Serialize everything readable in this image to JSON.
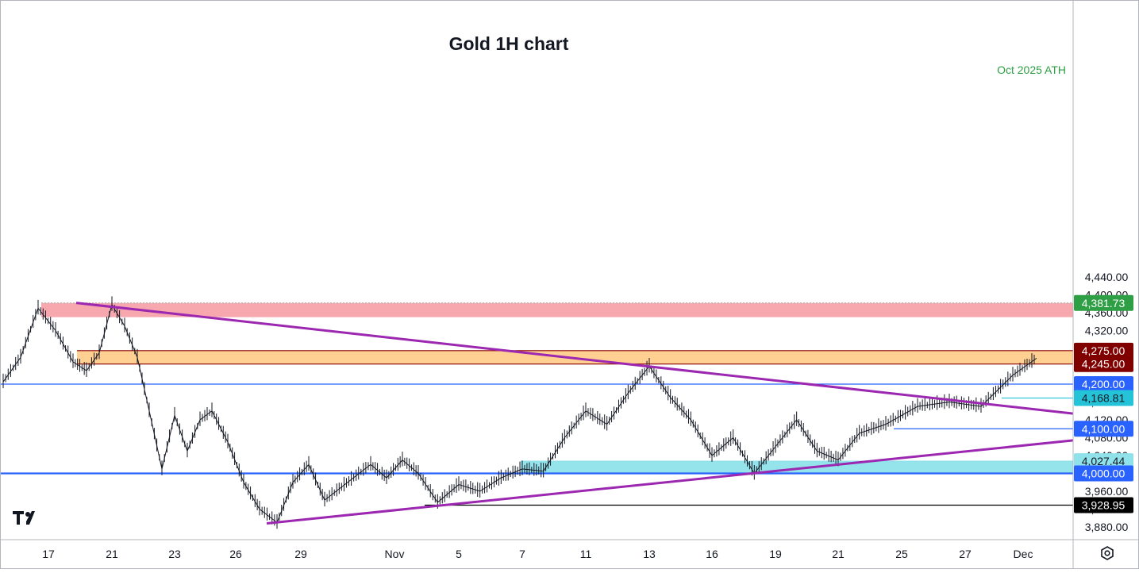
{
  "chart_data": {
    "type": "line",
    "title": "Gold 1H chart",
    "xlabel": "",
    "ylabel": "",
    "ylim": [
      3860,
      4460
    ],
    "x_ticks": [
      "17",
      "21",
      "23",
      "26",
      "29",
      "Nov",
      "5",
      "7",
      "11",
      "13",
      "16",
      "19",
      "21",
      "25",
      "27",
      "Dec"
    ],
    "y_ticks": [
      3880,
      3920,
      3960,
      4000,
      4040,
      4080,
      4120,
      4160,
      4200,
      4240,
      4280,
      4320,
      4360,
      4400,
      4440
    ],
    "y_tick_labels": [
      "3,880.00",
      "3,920.00",
      "3,960.00",
      "4,000.00",
      "4,040.00",
      "4,080.00",
      "4,120.00",
      "4,160.00",
      "4,200.00",
      "4,240.00",
      "4,280.00",
      "4,320.00",
      "4,360.00",
      "4,400.00",
      "4,440.00"
    ],
    "price_path": [
      [
        "17",
        4205
      ],
      [
        "17",
        4260
      ],
      [
        "17",
        4370
      ],
      [
        "17",
        4320
      ],
      [
        "17",
        4250
      ],
      [
        "21",
        4230
      ],
      [
        "21",
        4270
      ],
      [
        "21",
        4378
      ],
      [
        "21",
        4330
      ],
      [
        "21",
        4260
      ],
      [
        "23",
        4140
      ],
      [
        "23",
        4010
      ],
      [
        "23",
        4130
      ],
      [
        "23",
        4050
      ],
      [
        "23",
        4120
      ],
      [
        "26",
        4140
      ],
      [
        "26",
        4070
      ],
      [
        "26",
        3980
      ],
      [
        "26",
        3920
      ],
      [
        "29",
        3890
      ],
      [
        "29",
        3980
      ],
      [
        "29",
        4020
      ],
      [
        "29",
        3940
      ],
      [
        "Nov",
        4020
      ],
      [
        "Nov",
        3990
      ],
      [
        "Nov",
        4030
      ],
      [
        "Nov",
        4000
      ],
      [
        "5",
        3935
      ],
      [
        "5",
        3975
      ],
      [
        "5",
        3960
      ],
      [
        "7",
        3990
      ],
      [
        "7",
        4010
      ],
      [
        "7",
        4005
      ],
      [
        "11",
        4080
      ],
      [
        "11",
        4140
      ],
      [
        "11",
        4110
      ],
      [
        "13",
        4180
      ],
      [
        "13",
        4240
      ],
      [
        "13",
        4170
      ],
      [
        "16",
        4120
      ],
      [
        "16",
        4040
      ],
      [
        "16",
        4080
      ],
      [
        "19",
        4000
      ],
      [
        "19",
        4060
      ],
      [
        "19",
        4120
      ],
      [
        "21",
        4050
      ],
      [
        "21",
        4030
      ],
      [
        "21",
        4090
      ],
      [
        "25",
        4110
      ],
      [
        "25",
        4150
      ],
      [
        "27",
        4160
      ],
      [
        "27",
        4150
      ],
      [
        "Dec",
        4220
      ],
      [
        "Dec",
        4258
      ]
    ],
    "zones": [
      {
        "name": "Oct 2025 ATH",
        "from": 4350,
        "to": 4381.73,
        "color": "#f7a2aa"
      },
      {
        "name": "",
        "from": 4245,
        "to": 4275,
        "color": "#ffcd8c"
      },
      {
        "name": "",
        "from": 4000,
        "to": 4027.44,
        "color": "#8fe1ea"
      }
    ],
    "levels": [
      {
        "value": 4381.73,
        "label": "4,381.73",
        "color": "#2e9f44"
      },
      {
        "value": 4275,
        "label": "4,275.00",
        "color": "#800000"
      },
      {
        "value": 4245,
        "label": "4,245.00",
        "color": "#800000"
      },
      {
        "value": 4200,
        "label": "4,200.00",
        "color": "#2962ff"
      },
      {
        "value": 4168.81,
        "label": "4,168.81",
        "color": "#25c3d8"
      },
      {
        "value": 4100,
        "label": "4,100.00",
        "color": "#2962ff"
      },
      {
        "value": 4027.44,
        "label": "4,027.44",
        "color": "#8fe1ea"
      },
      {
        "value": 4000,
        "label": "4,000.00",
        "color": "#2962ff"
      },
      {
        "value": 3928.95,
        "label": "3,928.95",
        "color": "#000000"
      }
    ],
    "trendlines": [
      {
        "name": "descending",
        "from": [
          "17",
          4382
        ],
        "to": [
          "Dec",
          4134
        ]
      },
      {
        "name": "ascending",
        "from": [
          "29",
          3888
        ],
        "to": [
          "Dec",
          4074
        ]
      }
    ],
    "annotations": [
      "Oct 2025 ATH"
    ],
    "grid": false,
    "legend": "none"
  },
  "branding": {
    "logo": "TV"
  }
}
